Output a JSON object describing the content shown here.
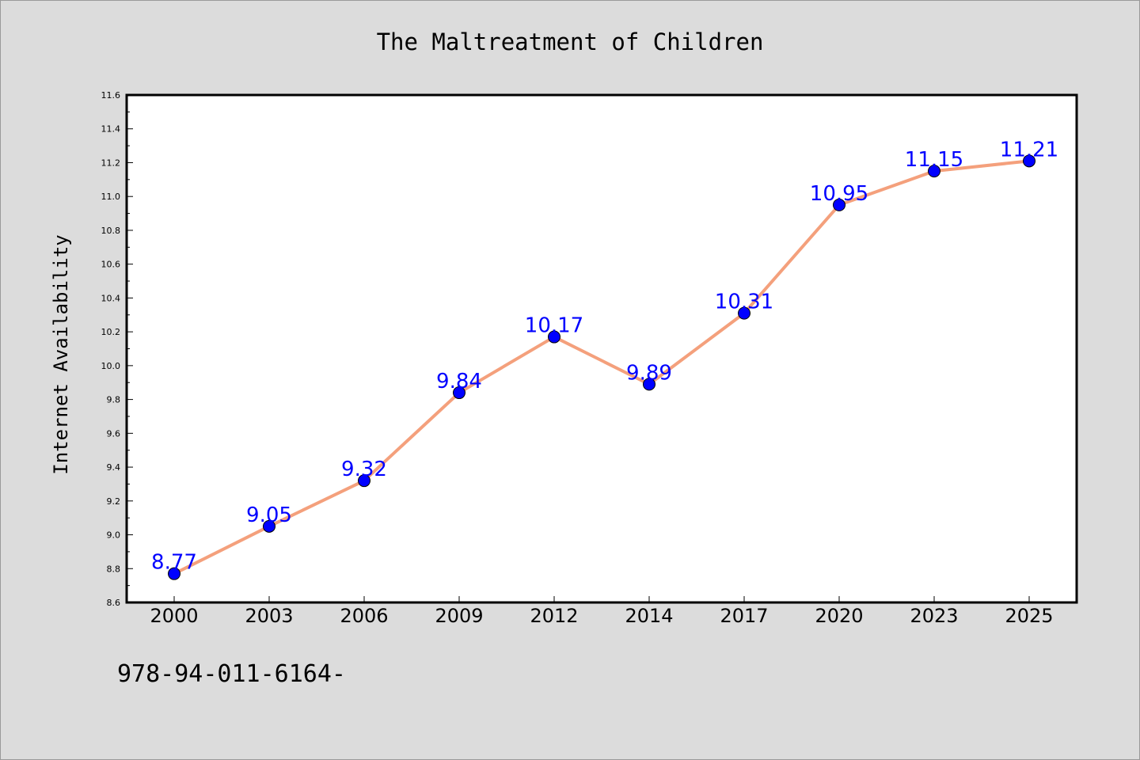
{
  "chart_data": {
    "type": "line",
    "title": "The Maltreatment of Children",
    "xlabel": "",
    "ylabel": "Internet Availability",
    "categories": [
      "2000",
      "2003",
      "2006",
      "2009",
      "2012",
      "2014",
      "2017",
      "2020",
      "2023",
      "2025"
    ],
    "series": [
      {
        "values": [
          8.77,
          9.05,
          9.32,
          9.84,
          10.17,
          9.89,
          10.31,
          10.95,
          11.15,
          11.21
        ],
        "labels": [
          "8.77",
          "9.05",
          "9.32",
          "9.84",
          "10.17",
          "9.89",
          "10.31",
          "10.95",
          "11.15",
          "11.21"
        ]
      }
    ],
    "ylim": [
      8.6,
      11.6
    ],
    "yticks": [
      "8.6",
      "8.8",
      "9.0",
      "9.2",
      "9.4",
      "9.6",
      "9.8",
      "10.0",
      "10.2",
      "10.4",
      "10.6",
      "10.8",
      "11.0",
      "11.2",
      "11.4",
      "11.6"
    ],
    "grid": false,
    "line_color": "#f4a07c",
    "marker_color": "#0000ff",
    "label_color": "#0000ff"
  },
  "footer_note": "978-94-011-6164-"
}
